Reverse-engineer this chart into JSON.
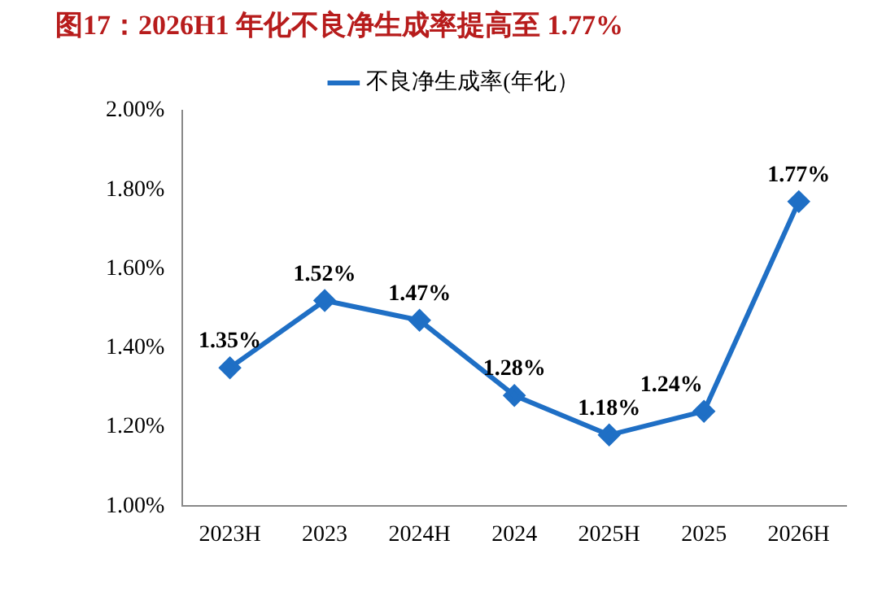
{
  "chart_data": {
    "type": "line",
    "title": "图17：2026H1 年化不良净生成率提高至 1.77%",
    "categories": [
      "2023H",
      "2023",
      "2024H",
      "2024",
      "2025H",
      "2025",
      "2026H"
    ],
    "series": [
      {
        "name": "不良净生成率(年化）",
        "color": "#1f6fc5",
        "values": [
          1.35,
          1.52,
          1.47,
          1.28,
          1.18,
          1.24,
          1.77
        ],
        "value_labels": [
          "1.35%",
          "1.52%",
          "1.47%",
          "1.28%",
          "1.18%",
          "1.24%",
          "1.77%"
        ]
      }
    ],
    "ylim": [
      1,
      2
    ],
    "yticks": [
      {
        "value": 1,
        "label": "1.00%"
      },
      {
        "value": 1.2,
        "label": "1.20%"
      },
      {
        "value": 1.4,
        "label": "1.40%"
      },
      {
        "value": 1.6,
        "label": "1.60%"
      },
      {
        "value": 1.8,
        "label": "1.80%"
      },
      {
        "value": 2,
        "label": "2.00%"
      }
    ],
    "grid": false,
    "legend": "top",
    "marker": "diamond",
    "line_style": "solid"
  }
}
